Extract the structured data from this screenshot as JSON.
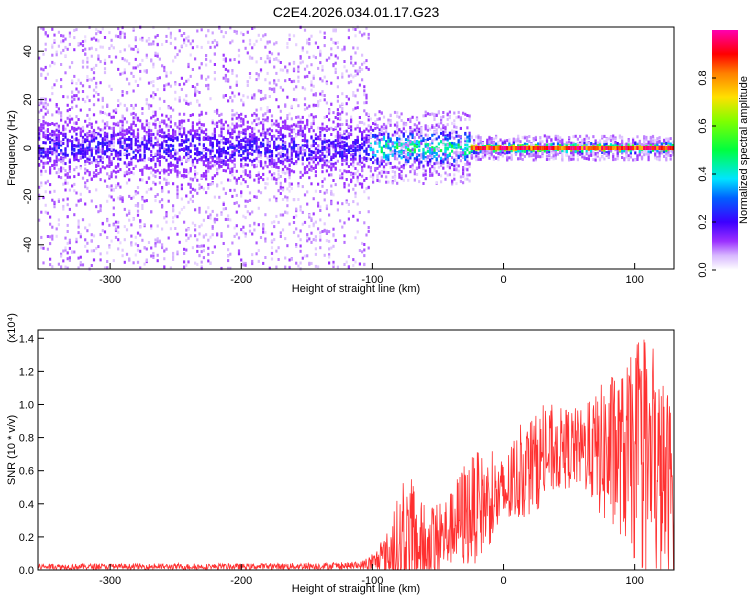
{
  "figure": {
    "title": "C2E4.2026.034.01.17.G23"
  },
  "chart_data": [
    {
      "type": "heatmap",
      "title": "C2E4.2026.034.01.17.G23",
      "xlabel": "Height of straight line (km)",
      "ylabel": "Frequency (Hz)",
      "xlim": [
        -355,
        130
      ],
      "ylim": [
        -50,
        50
      ],
      "xticks": [
        -300,
        -200,
        -100,
        0,
        100
      ],
      "yticks": [
        -40,
        -20,
        0,
        20,
        40
      ],
      "colorbar": {
        "label": "Normalized spectral amplitude",
        "range": [
          0.0,
          1.0
        ],
        "ticks": [
          "0.0",
          "0.2",
          "0.4",
          "0.6",
          "0.8"
        ],
        "colormap": [
          "#ffffff",
          "#9b30ff",
          "#3c00ff",
          "#0000ff",
          "#00e5ff",
          "#00ff40",
          "#e0ff00",
          "#ff8000",
          "#ff0000",
          "#ff00b0"
        ]
      },
      "description_of_structure": [
        {
          "x_range": [
            -355,
            -102
          ],
          "freq_spread": [
            -50,
            50
          ],
          "core_spread": [
            -12,
            12
          ],
          "peak_amplitude": 0.25
        },
        {
          "x_range": [
            -102,
            -25
          ],
          "freq_spread": [
            -15,
            15
          ],
          "core_spread": [
            -6,
            8
          ],
          "peak_amplitude": 0.55
        },
        {
          "x_range": [
            -25,
            130
          ],
          "freq_spread": [
            -5,
            5
          ],
          "core_spread": [
            -2,
            2
          ],
          "peak_amplitude": 0.95
        }
      ]
    },
    {
      "type": "line",
      "xlabel": "Height of straight line (km)",
      "ylabel": "SNR (10 * v/v)",
      "y_multiplier": "(x10⁴)",
      "xlim": [
        -355,
        130
      ],
      "ylim": [
        0,
        1.45
      ],
      "xticks": [
        -300,
        -200,
        -100,
        0,
        100
      ],
      "yticks": [
        "0.0",
        "0.2",
        "0.4",
        "0.6",
        "0.8",
        "1.0",
        "1.2",
        "1.4"
      ],
      "series_color": "#ff3030",
      "envelope": {
        "x": [
          -355,
          -300,
          -200,
          -110,
          -100,
          -90,
          -80,
          -70,
          -60,
          -50,
          -40,
          -30,
          -20,
          -10,
          0,
          10,
          20,
          30,
          40,
          50,
          60,
          70,
          80,
          90,
          100,
          110,
          120,
          130
        ],
        "mean": [
          0.02,
          0.02,
          0.02,
          0.025,
          0.04,
          0.08,
          0.12,
          0.15,
          0.12,
          0.16,
          0.25,
          0.33,
          0.38,
          0.42,
          0.45,
          0.55,
          0.62,
          0.68,
          0.72,
          0.74,
          0.73,
          0.72,
          0.7,
          0.7,
          0.68,
          0.62,
          0.55,
          0.5
        ],
        "max": [
          0.04,
          0.04,
          0.04,
          0.05,
          0.1,
          0.22,
          0.5,
          0.6,
          0.4,
          0.45,
          0.5,
          0.7,
          0.75,
          0.72,
          0.7,
          0.85,
          0.95,
          1.0,
          1.0,
          1.02,
          1.0,
          1.1,
          1.26,
          1.25,
          1.4,
          1.42,
          1.25,
          1.1
        ]
      }
    }
  ]
}
